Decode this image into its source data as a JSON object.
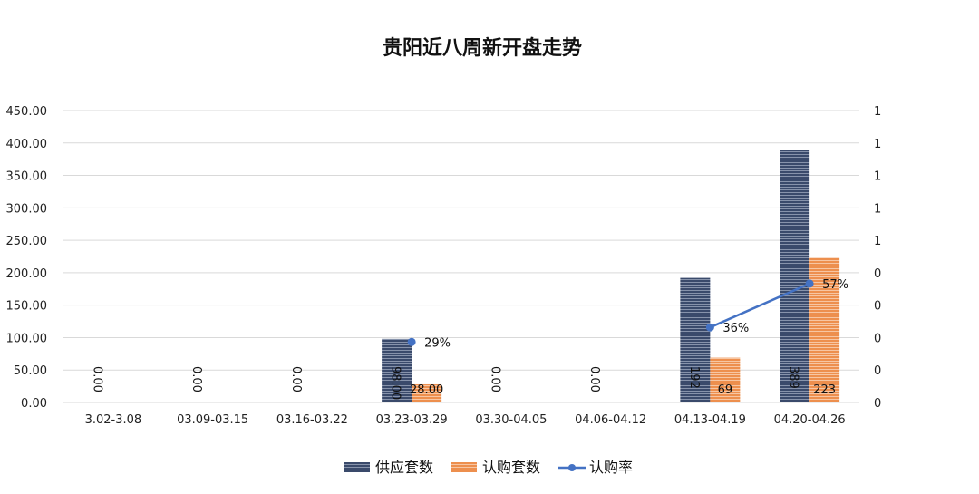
{
  "chart_data": {
    "type": "bar",
    "title": "贵阳近八周新开盘走势",
    "categories": [
      "3.02-3.08",
      "03.09-03.15",
      "03.16-03.22",
      "03.23-03.29",
      "03.30-04.05",
      "04.06-04.12",
      "04.13-04.19",
      "04.20-04.26"
    ],
    "series": [
      {
        "name": "供应套数",
        "type": "bar",
        "axis": "left",
        "color": "#3a4a6b",
        "values": [
          0,
          0,
          0,
          98,
          0,
          0,
          192,
          389
        ],
        "labels": [
          "0.00",
          "0.00",
          "0.00",
          "98.00",
          "0.00",
          "0.00",
          "192",
          "389"
        ]
      },
      {
        "name": "认购套数",
        "type": "bar",
        "axis": "left",
        "color": "#ed8f4e",
        "values": [
          0,
          0,
          0,
          28,
          0,
          0,
          69,
          223
        ],
        "labels": [
          "",
          "",
          "",
          "28.00",
          "",
          "",
          "69",
          "223"
        ]
      },
      {
        "name": "认购率",
        "type": "line",
        "axis": "right",
        "color": "#4472c4",
        "values": [
          null,
          null,
          null,
          0.29,
          null,
          null,
          0.36,
          0.57
        ],
        "labels": [
          "",
          "",
          "",
          "29%",
          "",
          "",
          "36%",
          "57%"
        ]
      }
    ],
    "left_axis": {
      "min": 0,
      "max": 450,
      "step": 50,
      "ticks": [
        "0.00",
        "50.00",
        "100.00",
        "150.00",
        "200.00",
        "250.00",
        "300.00",
        "350.00",
        "400.00",
        "450.00"
      ]
    },
    "right_axis": {
      "min": 0,
      "max": 1.4,
      "ticks": [
        "0",
        "0",
        "0",
        "0",
        "0",
        "1",
        "1",
        "1",
        "1",
        "1"
      ]
    },
    "legend": [
      "供应套数",
      "认购套数",
      "认购率"
    ],
    "legend_position": "bottom",
    "grid": true
  }
}
